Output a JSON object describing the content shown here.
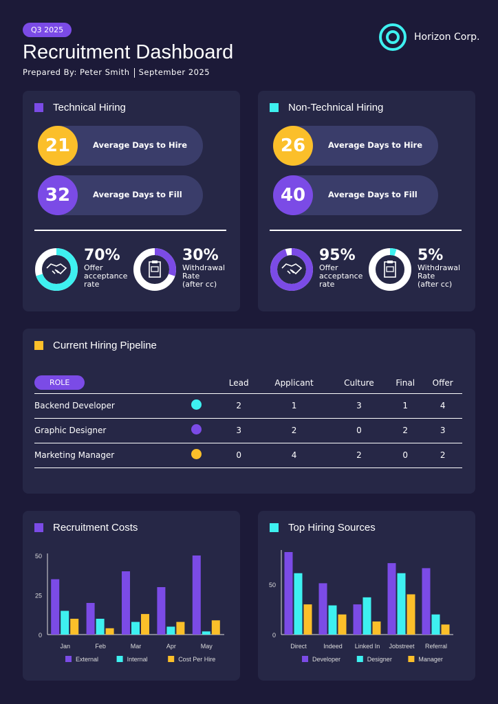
{
  "header": {
    "badge": "Q3 2025",
    "title": "Recruitment Dashboard",
    "prepared_by": "Prepared By: Peter Smith",
    "date": "September 2025",
    "company": "Horizon Corp."
  },
  "colors": {
    "purple": "#7b4be6",
    "cyan": "#3ef0f0",
    "yellow": "#fbbf2a",
    "card": "#262746",
    "background": "#1c1a38"
  },
  "technical": {
    "title": "Technical Hiring",
    "days_to_hire": "21",
    "days_to_hire_label": "Average Days to Hire",
    "days_to_fill": "32",
    "days_to_fill_label": "Average Days to Fill",
    "offer_pct": "70%",
    "offer_value": 70,
    "offer_label": "Offer\nacceptance\nrate",
    "withdrawal_pct": "30%",
    "withdrawal_value": 30,
    "withdrawal_label": "Withdrawal\nRate\n(after cc)"
  },
  "nontechnical": {
    "title": "Non-Technical Hiring",
    "days_to_hire": "26",
    "days_to_hire_label": "Average Days to Hire",
    "days_to_fill": "40",
    "days_to_fill_label": "Average Days to Fill",
    "offer_pct": "95%",
    "offer_value": 95,
    "offer_label": "Offer\nacceptance\nrate",
    "withdrawal_pct": "5%",
    "withdrawal_value": 5,
    "withdrawal_label": "Withdrawal\nRate\n(after cc)"
  },
  "pipeline": {
    "title": "Current Hiring Pipeline",
    "role_header": "ROLE",
    "columns": [
      "Lead",
      "Applicant",
      "Culture",
      "Final",
      "Offer"
    ],
    "rows": [
      {
        "role": "Backend Developer",
        "color": "#3ef0f0",
        "values": [
          "2",
          "1",
          "3",
          "1",
          "4"
        ]
      },
      {
        "role": "Graphic Designer",
        "color": "#7b4be6",
        "values": [
          "3",
          "2",
          "0",
          "2",
          "3"
        ]
      },
      {
        "role": "Marketing Manager",
        "color": "#fbbf2a",
        "values": [
          "0",
          "4",
          "2",
          "0",
          "2"
        ]
      }
    ]
  },
  "chart_data": [
    {
      "type": "bar",
      "title": "Recruitment Costs",
      "categories": [
        "Jan",
        "Feb",
        "Mar",
        "Apr",
        "May"
      ],
      "ylim": [
        0,
        50
      ],
      "yticks": [
        "0",
        "25",
        "50"
      ],
      "legend": "bottom",
      "series": [
        {
          "name": "External",
          "color": "#7b4be6",
          "values": [
            35,
            20,
            40,
            30,
            50
          ]
        },
        {
          "name": "Internal",
          "color": "#3ef0f0",
          "values": [
            15,
            10,
            8,
            5,
            2
          ]
        },
        {
          "name": "Cost Per Hire",
          "color": "#fbbf2a",
          "values": [
            10,
            4,
            13,
            8,
            9
          ]
        }
      ]
    },
    {
      "type": "bar",
      "title": "Top Hiring Sources",
      "categories": [
        "Direct",
        "Indeed",
        "Linked In",
        "Jobstreet",
        "Referral"
      ],
      "ylim": [
        0,
        82
      ],
      "yticks": [
        "0",
        "50"
      ],
      "legend": "bottom",
      "series": [
        {
          "name": "Developer",
          "color": "#7b4be6",
          "values": [
            82,
            51,
            30,
            71,
            66
          ]
        },
        {
          "name": "Designer",
          "color": "#3ef0f0",
          "values": [
            61,
            29,
            37,
            61,
            20
          ]
        },
        {
          "name": "Manager",
          "color": "#fbbf2a",
          "values": [
            30,
            20,
            13,
            40,
            10
          ]
        }
      ]
    }
  ]
}
